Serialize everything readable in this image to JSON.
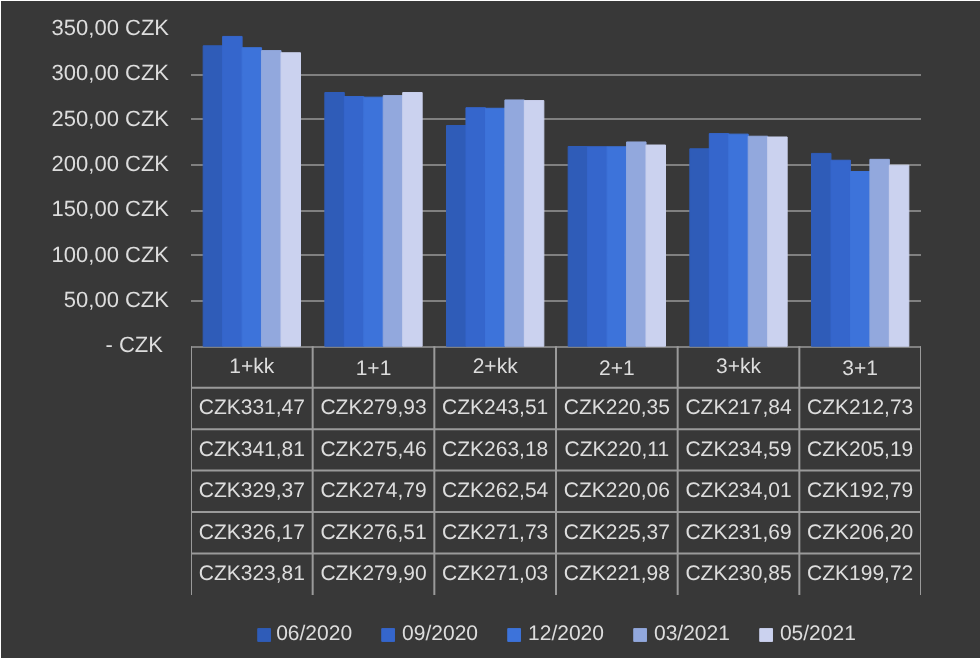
{
  "chart_data": {
    "type": "bar",
    "categories": [
      "1+kk",
      "1+1",
      "2+kk",
      "2+1",
      "3+kk",
      "3+1"
    ],
    "series": [
      {
        "name": "06/2020",
        "color": "#2f5cb8",
        "values": [
          331.47,
          279.93,
          243.51,
          220.35,
          217.84,
          212.73
        ],
        "value_labels": [
          "CZK331,47",
          "CZK279,93",
          "CZK243,51",
          "CZK220,35",
          "CZK217,84",
          "CZK212,73"
        ]
      },
      {
        "name": "09/2020",
        "color": "#3566cc",
        "values": [
          341.81,
          275.46,
          263.18,
          220.11,
          234.59,
          205.19
        ],
        "value_labels": [
          "CZK341,81",
          "CZK275,46",
          "CZK263,18",
          "CZK220,11",
          "CZK234,59",
          "CZK205,19"
        ]
      },
      {
        "name": "12/2020",
        "color": "#3d73da",
        "values": [
          329.37,
          274.79,
          262.54,
          220.06,
          234.01,
          192.79
        ],
        "value_labels": [
          "CZK329,37",
          "CZK274,79",
          "CZK262,54",
          "CZK220,06",
          "CZK234,01",
          "CZK192,79"
        ]
      },
      {
        "name": "03/2021",
        "color": "#92a8dd",
        "values": [
          326.17,
          276.51,
          271.73,
          225.37,
          231.69,
          206.2
        ],
        "value_labels": [
          "CZK326,17",
          "CZK276,51",
          "CZK271,73",
          "CZK225,37",
          "CZK231,69",
          "CZK206,20"
        ]
      },
      {
        "name": "05/2021",
        "color": "#cbd2ef",
        "values": [
          323.81,
          279.9,
          271.03,
          221.98,
          230.85,
          199.72
        ],
        "value_labels": [
          "CZK323,81",
          "CZK279,90",
          "CZK271,03",
          "CZK221,98",
          "CZK230,85",
          "CZK199,72"
        ]
      }
    ],
    "ylim": [
      0,
      350
    ],
    "yticks": [
      {
        "value": 0,
        "label": "-  CZK"
      },
      {
        "value": 50,
        "label": "50,00 CZK"
      },
      {
        "value": 100,
        "label": "100,00 CZK"
      },
      {
        "value": 150,
        "label": "150,00 CZK"
      },
      {
        "value": 200,
        "label": "200,00 CZK"
      },
      {
        "value": 250,
        "label": "250,00 CZK"
      },
      {
        "value": 300,
        "label": "300,00 CZK"
      },
      {
        "value": 350,
        "label": "350,00 CZK"
      }
    ],
    "grid": "y",
    "legend": "bottom"
  }
}
